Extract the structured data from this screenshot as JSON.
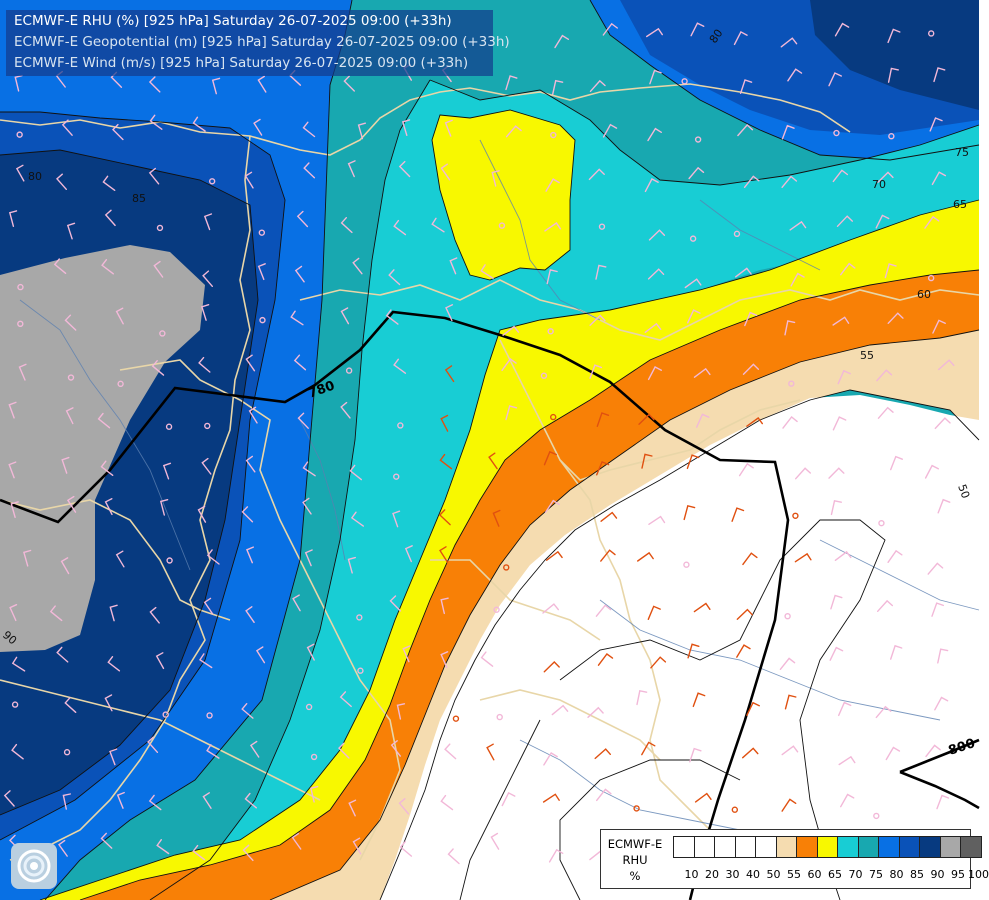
{
  "title_lines": [
    "ECMWF-E RHU (%) [925 hPa] Saturday 26-07-2025 09:00 (+33h)",
    "ECMWF-E Geopotential (m) [925 hPa] Saturday 26-07-2025 09:00 (+33h)",
    "ECMWF-E Wind (m/s) [925 hPa] Saturday 26-07-2025 09:00 (+33h)"
  ],
  "legend": {
    "name_lines": [
      "ECMWF-E",
      "RHU",
      "%"
    ],
    "levels": [
      "10",
      "20",
      "30",
      "40",
      "50",
      "55",
      "60",
      "65",
      "70",
      "75",
      "80",
      "85",
      "90",
      "95",
      "100"
    ],
    "colors": [
      "#ffffff",
      "#ffffff",
      "#ffffff",
      "#ffffff",
      "#ffffff",
      "#f5dcb0",
      "#f88006",
      "#f8f800",
      "#18cdd4",
      "#18a8b0",
      "#0870e4",
      "#0a52b8",
      "#073a80",
      "#a8a8a8",
      "#606060"
    ]
  },
  "contour_labels": {
    "humidity": [
      "80",
      "85",
      "75",
      "70",
      "65",
      "60",
      "55",
      "50",
      "90",
      "80"
    ],
    "geopotential": [
      "780",
      "800"
    ]
  },
  "logo": "ecmwf-swirl-icon"
}
